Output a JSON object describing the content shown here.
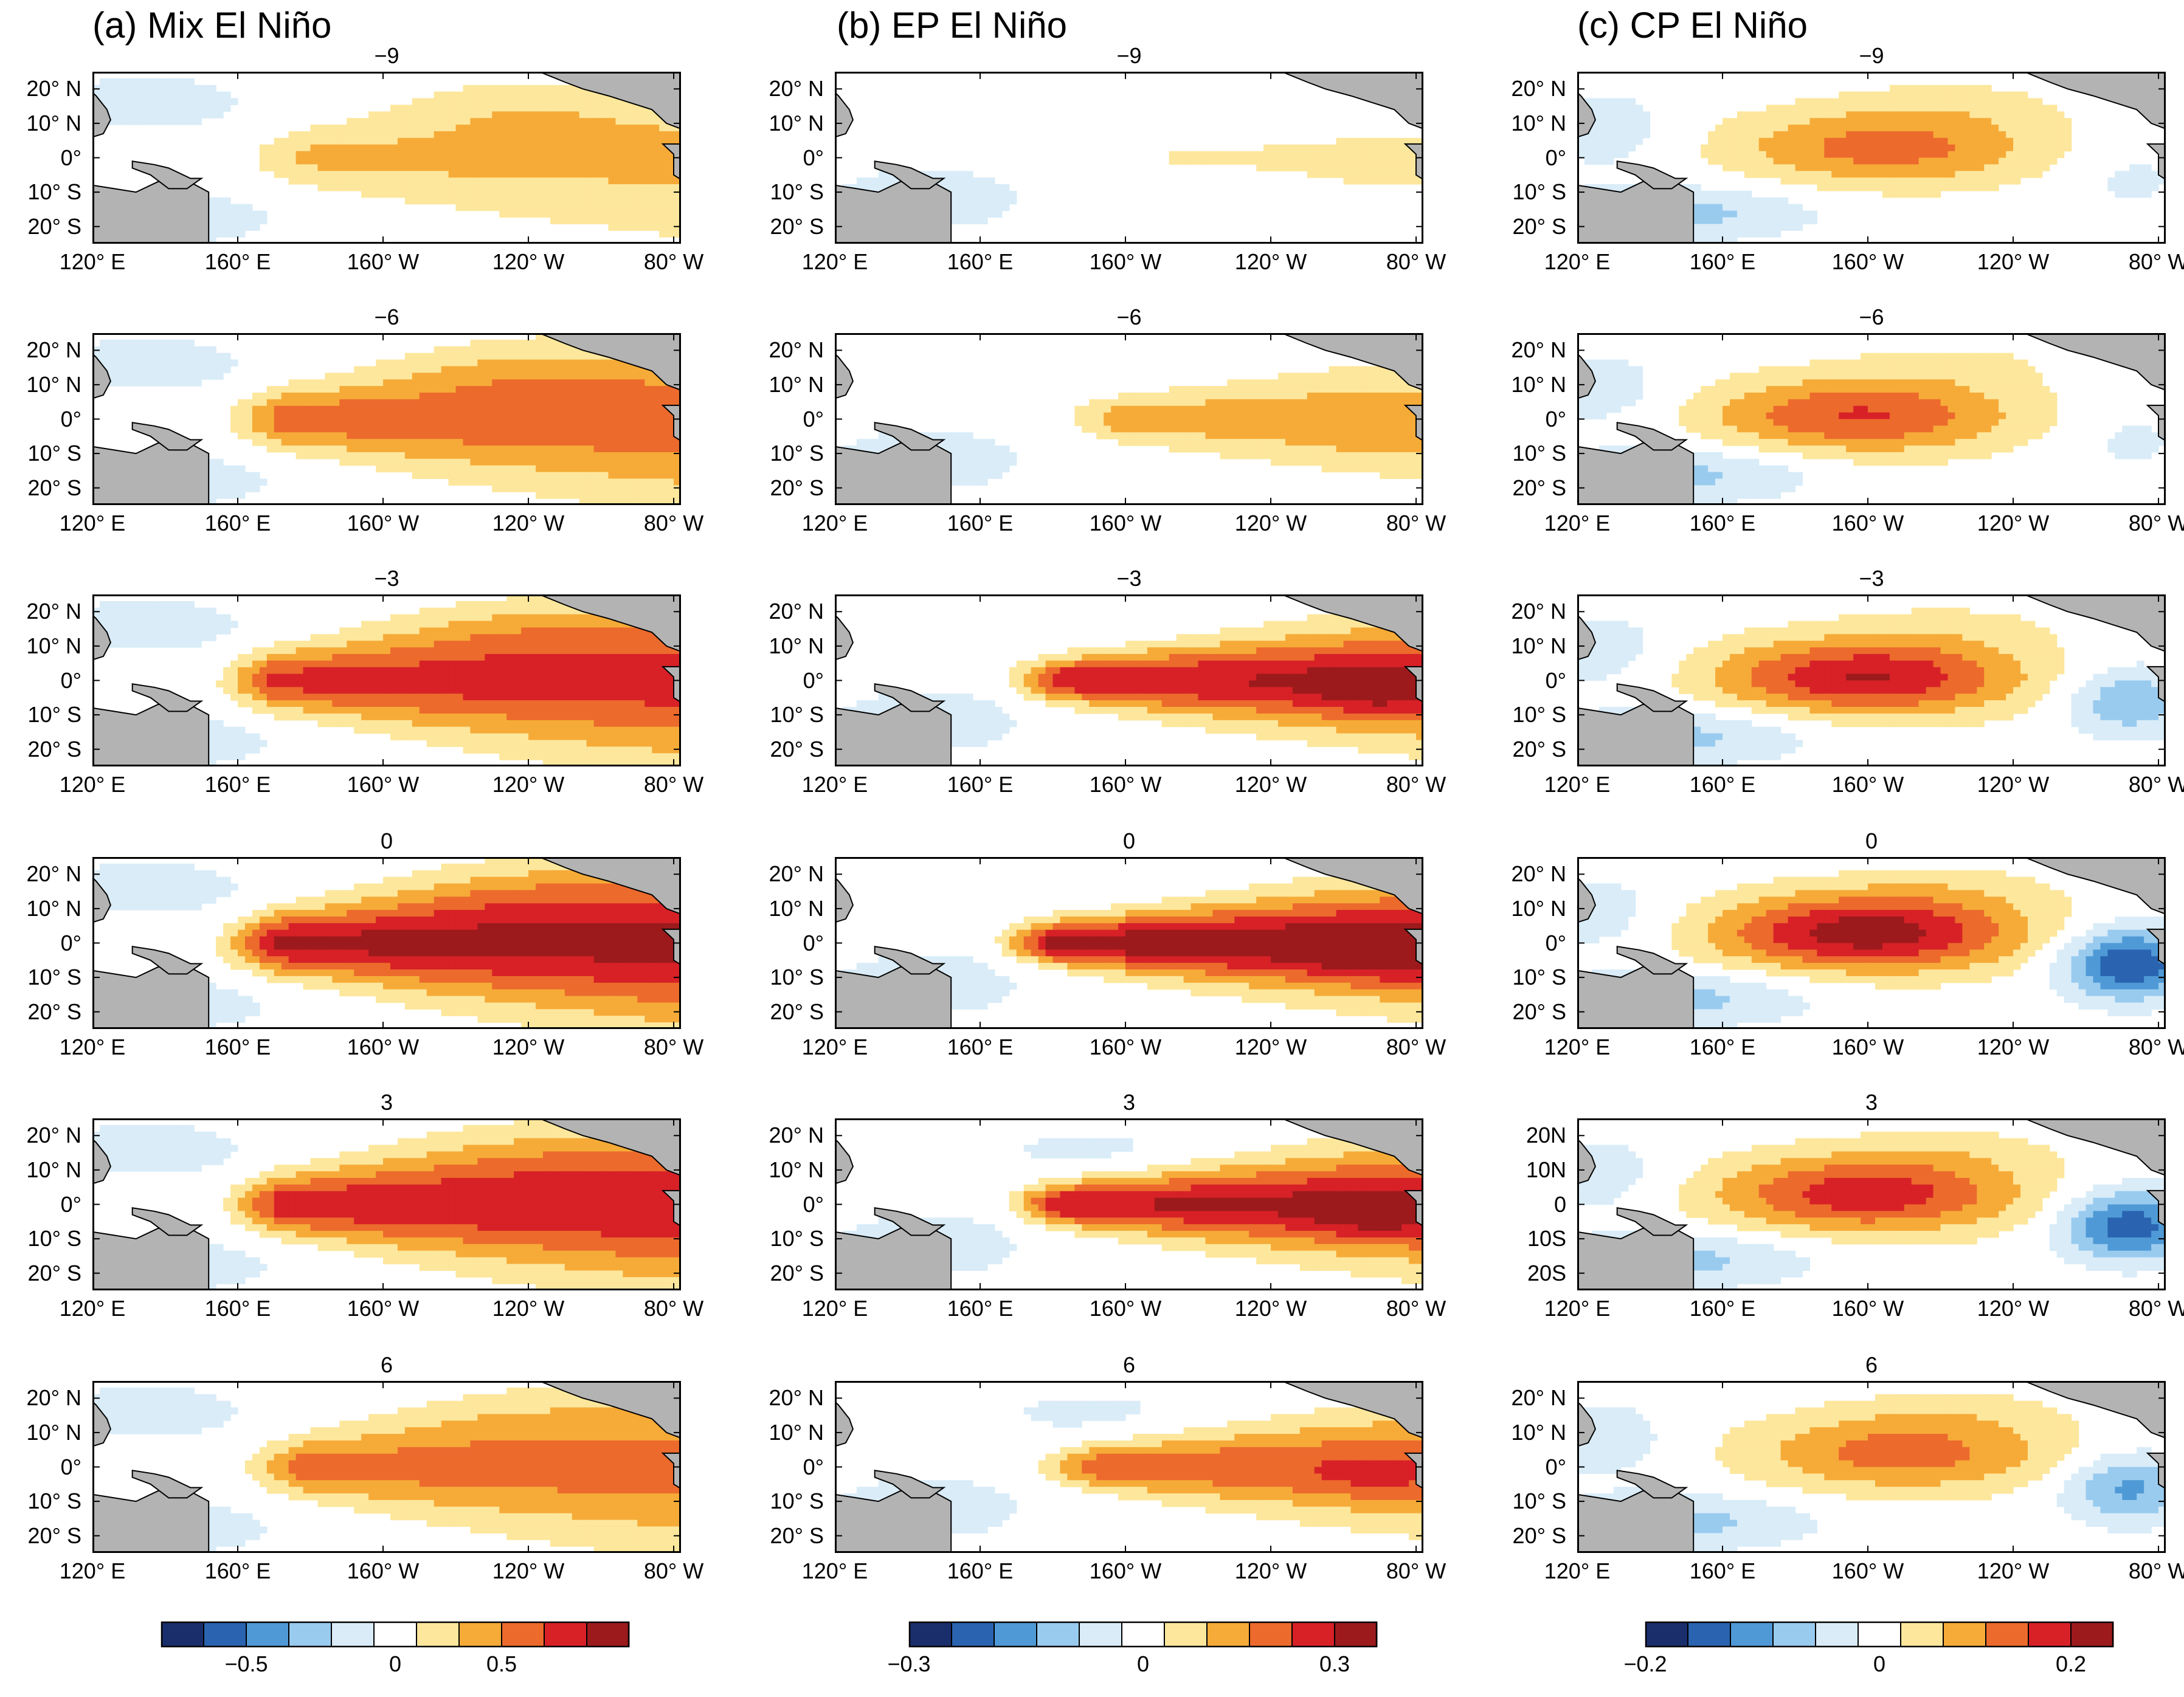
{
  "figure": {
    "columns": [
      {
        "id": "a",
        "title": "(a) Mix El Niño",
        "kind": "mix",
        "colorbar": {
          "ticks": [
            "−0.5",
            "0",
            "0.5"
          ],
          "tick_positions": [
            2,
            5,
            8
          ]
        }
      },
      {
        "id": "b",
        "title": "(b) EP El Niño",
        "kind": "ep",
        "colorbar": {
          "ticks": [
            "−0.3",
            "0",
            "0.3"
          ],
          "tick_positions": [
            0,
            5,
            10
          ]
        }
      },
      {
        "id": "c",
        "title": "(c) CP El Niño",
        "kind": "cp",
        "colorbar": {
          "ticks": [
            "−0.2",
            "0",
            "0.2"
          ],
          "tick_positions": [
            0,
            5,
            10
          ]
        }
      }
    ],
    "lags": [
      "−9",
      "−6",
      "−3",
      "0",
      "3",
      "6"
    ],
    "lag_values": [
      -9,
      -6,
      -3,
      0,
      3,
      6
    ],
    "lon_labels": [
      "120° E",
      "160° E",
      "160° W",
      "120° W",
      "80° W"
    ],
    "lon_values": [
      120,
      160,
      200,
      240,
      280
    ],
    "lat_labels": [
      "20° N",
      "10° N",
      "0°",
      "10° S",
      "20° S"
    ],
    "lat_labels_alt": [
      "20N",
      "10N",
      "0",
      "10S",
      "20S"
    ],
    "lat_values": [
      20,
      10,
      0,
      -10,
      -20
    ],
    "lon_range": [
      120,
      282
    ],
    "lat_range": [
      -25,
      25
    ],
    "colorbar_colors": [
      "#1a2e6b",
      "#2a64b0",
      "#4f9ad6",
      "#99cbef",
      "#d9ecf8",
      "#ffffff",
      "#fde79c",
      "#f6ab38",
      "#ec6a2c",
      "#d72127",
      "#9c1a1c"
    ],
    "land_color": "#b3b3b3"
  }
}
